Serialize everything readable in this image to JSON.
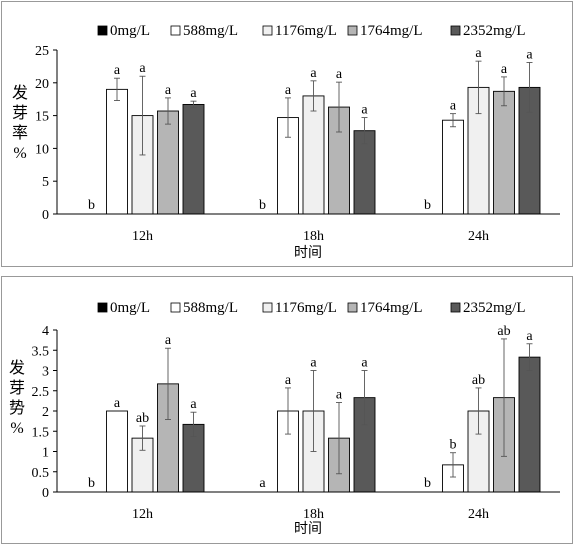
{
  "chart_data": [
    {
      "type": "bar",
      "categories": [
        "12h",
        "18h",
        "24h"
      ],
      "xlabel": "时间",
      "ylabel": [
        "发",
        "芽",
        "率",
        "%"
      ],
      "ylim": [
        0,
        25
      ],
      "yticks": [
        0,
        5,
        10,
        15,
        20,
        25
      ],
      "grid": false,
      "legend_position": "top",
      "series": [
        {
          "name": "0mg/L",
          "color": "#000000",
          "values": [
            0,
            0,
            0
          ],
          "errors": [
            0,
            0,
            0
          ],
          "letters": [
            "b",
            "b",
            "b"
          ]
        },
        {
          "name": "588mg/L",
          "color": "#ffffff",
          "values": [
            19.0,
            14.7,
            14.3
          ],
          "errors": [
            1.7,
            3.0,
            1.0
          ],
          "letters": [
            "a",
            "a",
            "a"
          ]
        },
        {
          "name": "1176mg/L",
          "color": "#f0f0f0",
          "values": [
            15.0,
            18.0,
            19.3
          ],
          "errors": [
            6.0,
            2.3,
            4.0
          ],
          "letters": [
            "a",
            "a",
            "a"
          ]
        },
        {
          "name": "1764mg/L",
          "color": "#b5b5b5",
          "values": [
            15.7,
            16.3,
            18.7
          ],
          "errors": [
            2.0,
            3.8,
            2.2
          ],
          "letters": [
            "a",
            "a",
            "a"
          ]
        },
        {
          "name": "2352mg/L",
          "color": "#595959",
          "values": [
            16.7,
            12.7,
            19.3
          ],
          "errors": [
            0.5,
            2.0,
            3.8
          ],
          "letters": [
            "a",
            "a",
            "a"
          ]
        }
      ]
    },
    {
      "type": "bar",
      "categories": [
        "12h",
        "18h",
        "24h"
      ],
      "xlabel": "时间",
      "ylabel": [
        "发",
        "芽",
        "势",
        "%"
      ],
      "ylim": [
        0,
        4
      ],
      "yticks": [
        0,
        0.5,
        1,
        1.5,
        2,
        2.5,
        3,
        3.5,
        4
      ],
      "grid": false,
      "legend_position": "top",
      "series": [
        {
          "name": "0mg/L",
          "color": "#000000",
          "values": [
            0,
            0,
            0
          ],
          "errors": [
            0,
            0,
            0
          ],
          "letters": [
            "b",
            "a",
            "b"
          ]
        },
        {
          "name": "588mg/L",
          "color": "#ffffff",
          "values": [
            2.0,
            2.0,
            0.67
          ],
          "errors": [
            0,
            0.57,
            0.3
          ],
          "letters": [
            "a",
            "a",
            "b"
          ]
        },
        {
          "name": "1176mg/L",
          "color": "#f0f0f0",
          "values": [
            1.33,
            2.0,
            2.0
          ],
          "errors": [
            0.3,
            1.0,
            0.57
          ],
          "letters": [
            "ab",
            "a",
            "ab"
          ]
        },
        {
          "name": "1764mg/L",
          "color": "#b5b5b5",
          "values": [
            2.67,
            1.33,
            2.33
          ],
          "errors": [
            0.88,
            0.88,
            1.45
          ],
          "letters": [
            "a",
            "a",
            "ab"
          ]
        },
        {
          "name": "2352mg/L",
          "color": "#595959",
          "values": [
            1.67,
            2.33,
            3.33
          ],
          "errors": [
            0.3,
            0.67,
            0.33
          ],
          "letters": [
            "a",
            "a",
            "a"
          ]
        }
      ]
    }
  ]
}
